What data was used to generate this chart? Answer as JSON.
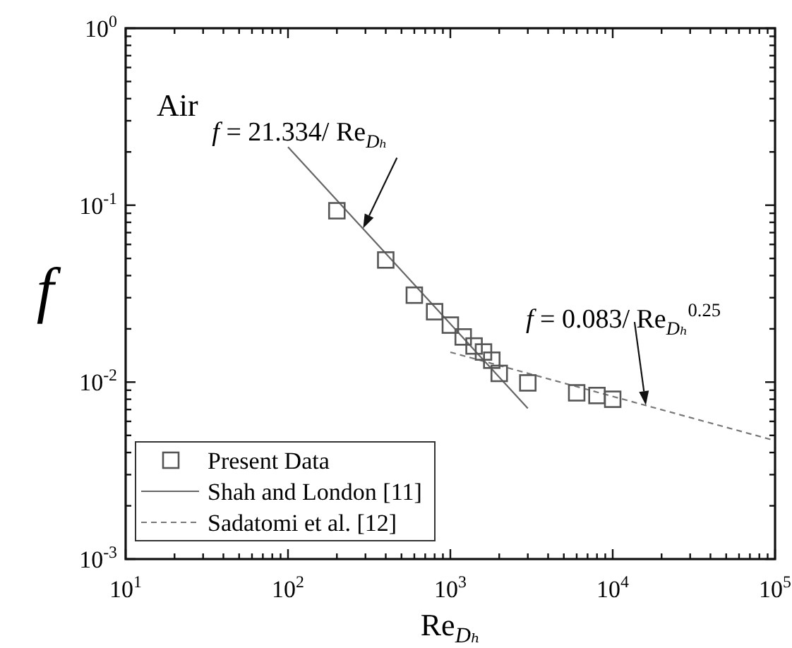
{
  "chart_data": {
    "type": "scatter",
    "xlabel": "Re$_{Dₕ}$",
    "ylabel": "f",
    "log": "xy",
    "marker": "square",
    "legend": "bottom left",
    "grid": false,
    "xlim": [
      10,
      100000
    ],
    "ylim": [
      0.001,
      1
    ],
    "xticks": [
      {
        "value": 10,
        "label": "10$^{1}$"
      },
      {
        "value": 20,
        "label": null
      },
      {
        "value": 30,
        "label": null
      },
      {
        "value": 40,
        "label": null
      },
      {
        "value": 50,
        "label": null
      },
      {
        "value": 60,
        "label": null
      },
      {
        "value": 70,
        "label": null
      },
      {
        "value": 80,
        "label": null
      },
      {
        "value": 90,
        "label": null
      },
      {
        "value": 100,
        "label": "10$^{2}$"
      },
      {
        "value": 200,
        "label": null
      },
      {
        "value": 300,
        "label": null
      },
      {
        "value": 400,
        "label": null
      },
      {
        "value": 500,
        "label": null
      },
      {
        "value": 600,
        "label": null
      },
      {
        "value": 700,
        "label": null
      },
      {
        "value": 800,
        "label": null
      },
      {
        "value": 900,
        "label": null
      },
      {
        "value": 1000,
        "label": "10$^{3}$"
      },
      {
        "value": 2000,
        "label": null
      },
      {
        "value": 3000,
        "label": null
      },
      {
        "value": 4000,
        "label": null
      },
      {
        "value": 5000,
        "label": null
      },
      {
        "value": 6000,
        "label": null
      },
      {
        "value": 7000,
        "label": null
      },
      {
        "value": 8000,
        "label": null
      },
      {
        "value": 9000,
        "label": null
      },
      {
        "value": 10000,
        "label": "10$^{4}$"
      },
      {
        "value": 20000,
        "label": null
      },
      {
        "value": 30000,
        "label": null
      },
      {
        "value": 40000,
        "label": null
      },
      {
        "value": 50000,
        "label": null
      },
      {
        "value": 60000,
        "label": null
      },
      {
        "value": 70000,
        "label": null
      },
      {
        "value": 80000,
        "label": null
      },
      {
        "value": 90000,
        "label": null
      },
      {
        "value": 100000,
        "label": "10$^{5}$"
      }
    ],
    "yticks": [
      {
        "value": 0.001,
        "label": "10$^{-3}$"
      },
      {
        "value": 0.002,
        "label": null
      },
      {
        "value": 0.003,
        "label": null
      },
      {
        "value": 0.004,
        "label": null
      },
      {
        "value": 0.005,
        "label": null
      },
      {
        "value": 0.006,
        "label": null
      },
      {
        "value": 0.007,
        "label": null
      },
      {
        "value": 0.008,
        "label": null
      },
      {
        "value": 0.009,
        "label": null
      },
      {
        "value": 0.01,
        "label": "10$^{-2}$"
      },
      {
        "value": 0.02,
        "label": null
      },
      {
        "value": 0.03,
        "label": null
      },
      {
        "value": 0.04,
        "label": null
      },
      {
        "value": 0.05,
        "label": null
      },
      {
        "value": 0.06,
        "label": null
      },
      {
        "value": 0.07,
        "label": null
      },
      {
        "value": 0.08,
        "label": null
      },
      {
        "value": 0.09,
        "label": null
      },
      {
        "value": 0.1,
        "label": "10$^{-1}$"
      },
      {
        "value": 0.2,
        "label": null
      },
      {
        "value": 0.3,
        "label": null
      },
      {
        "value": 0.4,
        "label": null
      },
      {
        "value": 0.5,
        "label": null
      },
      {
        "value": 0.6,
        "label": null
      },
      {
        "value": 0.7,
        "label": null
      },
      {
        "value": 0.8,
        "label": null
      },
      {
        "value": 0.9,
        "label": null
      },
      {
        "value": 1,
        "label": "10$^{0}$"
      }
    ],
    "series": [
      {
        "name": "Present Data",
        "color": "#555555",
        "x": [
          200,
          400,
          600,
          800,
          1000,
          1200,
          1400,
          1600,
          1800,
          2000,
          3000,
          6000,
          8000,
          10000
        ],
        "values": [
          0.093,
          0.049,
          0.031,
          0.025,
          0.021,
          0.018,
          0.016,
          0.0148,
          0.0133,
          0.0112,
          0.0099,
          0.0087,
          0.0084,
          0.008
        ]
      },
      {
        "name": "Shah and London [11]",
        "type": "line",
        "line_style": "solid",
        "marker": "none",
        "color": "#666666",
        "x": [
          100,
          3000
        ],
        "values": [
          0.2133,
          0.00711
        ]
      },
      {
        "name": "Sadatomi et al. [12]",
        "type": "line",
        "line_style": "dashed",
        "marker": "none",
        "color": "#777777",
        "x": [
          1000,
          100000
        ],
        "values": [
          0.01476,
          0.00467
        ]
      }
    ],
    "annotations": [
      "Air",
      {
        "text": "f = 21.334/ Re$_{Dₕ}$",
        "x": 290,
        "y": 0.074
      },
      {
        "text": "f = 0.083/ Re$_{Dₕ}$$^{0.25}$",
        "x": 16000,
        "y": 0.0074
      }
    ]
  }
}
